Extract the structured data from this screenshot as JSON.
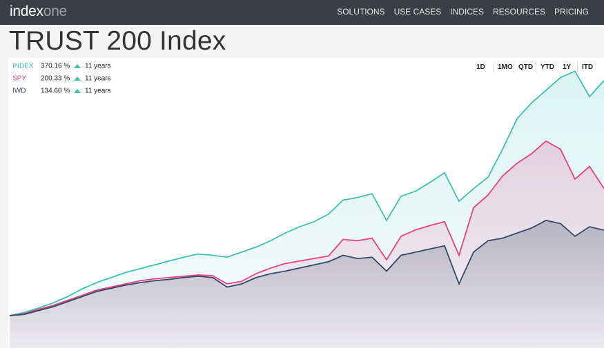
{
  "header": {
    "logo_a": "index",
    "logo_b": "one",
    "nav": [
      "SOLUTIONS",
      "USE CASES",
      "INDICES",
      "RESOURCES",
      "PRICING"
    ]
  },
  "range_buttons": [
    "1D",
    "1MO",
    "QTD",
    "YTD",
    "1Y",
    "ITD"
  ],
  "chart_data": {
    "type": "area",
    "title": "TRUST 200 Index",
    "ylim": [
      -51,
      406
    ],
    "series": [
      {
        "name": "INDEX",
        "color": "#3cc1b4",
        "total": 370.16,
        "total_label": "370.16 %",
        "period": "11 years",
        "values": [
          0,
          5,
          12,
          20,
          30,
          42,
          52,
          60,
          68,
          74,
          80,
          86,
          92,
          97,
          95,
          92,
          100,
          108,
          118,
          130,
          140,
          148,
          160,
          182,
          186,
          192,
          150,
          188,
          196,
          210,
          225,
          180,
          200,
          218,
          262,
          310,
          335,
          355,
          375,
          385,
          345,
          370.16
        ]
      },
      {
        "name": "SPY",
        "color": "#e8407f",
        "total": 200.33,
        "total_label": "200.33 %",
        "period": "11 years",
        "values": [
          0,
          3,
          10,
          16,
          24,
          32,
          40,
          45,
          50,
          55,
          58,
          60,
          62,
          64,
          63,
          50,
          54,
          66,
          75,
          82,
          86,
          90,
          94,
          120,
          118,
          122,
          88,
          125,
          135,
          142,
          148,
          95,
          170,
          190,
          220,
          240,
          255,
          275,
          262,
          215,
          235,
          200.33
        ]
      },
      {
        "name": "IWD",
        "color": "#34486b",
        "total": 134.6,
        "total_label": "134.60 %",
        "period": "11 years",
        "values": [
          0,
          2,
          8,
          14,
          22,
          30,
          38,
          43,
          48,
          52,
          55,
          57,
          60,
          62,
          60,
          45,
          50,
          60,
          66,
          70,
          75,
          80,
          85,
          95,
          90,
          92,
          70,
          95,
          100,
          105,
          110,
          50,
          100,
          118,
          122,
          130,
          138,
          150,
          145,
          125,
          140,
          134.6
        ]
      }
    ]
  }
}
